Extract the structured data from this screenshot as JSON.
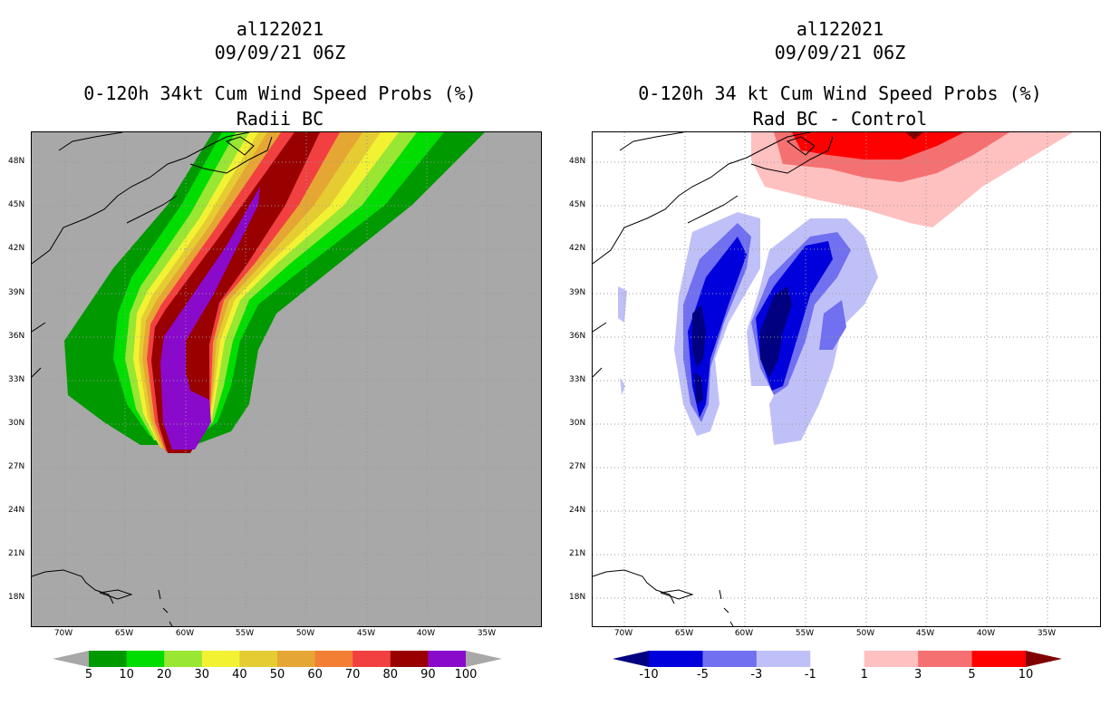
{
  "left_panel": {
    "storm_id": "al122021",
    "datetime": "09/09/21 06Z",
    "title": "0-120h 34kt Cum Wind Speed Probs (%)",
    "subtitle": "Radii BC",
    "colorbar": {
      "colors": [
        "#009900",
        "#00dd00",
        "#99e633",
        "#f2f233",
        "#e6cc33",
        "#e6a633",
        "#f27f33",
        "#f24040",
        "#990000",
        "#8a0acc"
      ],
      "labels": [
        "5",
        "10",
        "20",
        "30",
        "40",
        "50",
        "60",
        "70",
        "80",
        "90",
        "100"
      ],
      "extend_left": "#a8a8a8",
      "extend_right": "#a8a8a8"
    }
  },
  "right_panel": {
    "storm_id": "al122021",
    "datetime": "09/09/21 06Z",
    "title": "0-120h 34 kt Cum Wind Speed Probs (%)",
    "subtitle": "Rad BC - Control",
    "colorbar": {
      "colors": [
        "#0000dd",
        "#7070f0",
        "#c0c0f8",
        "#ffffff",
        "#ffc0c0",
        "#f57070",
        "#ff0000"
      ],
      "labels": [
        "-10",
        "-5",
        "-3",
        "-1",
        "1",
        "3",
        "5",
        "10"
      ],
      "extend_left": "#000080",
      "extend_right": "#800000"
    }
  },
  "lat_labels": [
    "48N",
    "45N",
    "42N",
    "39N",
    "36N",
    "33N",
    "30N",
    "27N",
    "24N",
    "21N",
    "18N"
  ],
  "lon_labels": [
    "70W",
    "65W",
    "60W",
    "55W",
    "50W",
    "45W",
    "40W",
    "35W"
  ],
  "colors": {
    "land_left": "#a8a8a8",
    "ocean_left": "#a8a8a8",
    "coast": "#000000",
    "grid": "#9a9a9a"
  }
}
